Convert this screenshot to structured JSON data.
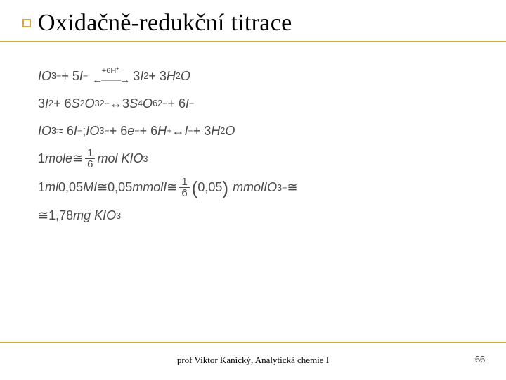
{
  "slide": {
    "title": "Oxidačně-redukční titrace",
    "accent_color": "#cfa93a",
    "title_fontsize": 34,
    "body_color": "#4a4a4a",
    "body_fontsize": 18,
    "equations": {
      "eq1": {
        "lhs_a": "IO",
        "lhs_a_sub": "3",
        "lhs_a_sup": "−",
        "plus1": " + 5",
        "lhs_b": "I",
        "lhs_b_sup": "−",
        "arrow_top": "+6H",
        "arrow_top_sup": "+",
        "rhs_a": "3",
        "rhs_a_sym": "I",
        "rhs_a_sub": "2",
        "plus2": " + 3",
        "rhs_b": "H",
        "rhs_b_sub": "2",
        "rhs_b_tail": "O"
      },
      "eq2": {
        "a": "3",
        "a_sym": "I",
        "a_sub": "2",
        "plus1": " + 6",
        "b": "S",
        "b_sub": "2",
        "b2": "O",
        "b2_sub": "3",
        "b_sup": "2−",
        "arr": " ↔ ",
        "c": "3",
        "c_sym": "S",
        "c_sub": "4",
        "c2": "O",
        "c2_sub": "6",
        "c_sup": "2−",
        "plus2": " + 6",
        "d": "I",
        "d_sup": "−"
      },
      "eq3": {
        "a": "IO",
        "a_sub": "3",
        "approx": " ≈ 6",
        "b": "I",
        "b_sup": "−",
        "sep": " ; ",
        "c": "IO",
        "c_sub": "3",
        "c_sup": "−",
        "plus1": " + 6",
        "e": "e",
        "e_sup": "−",
        "plus2": " + 6",
        "h": "H",
        "h_sup": "+",
        "arr": " ↔ ",
        "d": "I",
        "d_sup": "−",
        "plus3": " + 3",
        "w": "H",
        "w_sub": "2",
        "w_tail": "O"
      },
      "eq4": {
        "lhs": "1",
        "lhs_unit": "mol ",
        "lhs_sym": "e",
        "approx": " ≅ ",
        "frac_num": "1",
        "frac_den": "6",
        "rhs_unit": " mol KIO",
        "rhs_sub": "3"
      },
      "eq5": {
        "a_num": "1",
        "a_unit": "ml ",
        "a_conc": "0,05",
        "a_M": "M ",
        "a_sym": "I",
        "approx1": " ≅ ",
        "b_conc": "0,05",
        "b_unit": "mmol ",
        "b_sym": "I",
        "approx2": " ≅ ",
        "frac_num": "1",
        "frac_den": "6",
        "paren_val": "0,05",
        "c_unit": "mmol ",
        "c_sym": "IO",
        "c_sub": "3",
        "c_sup": "−",
        "approx3": " ≅"
      },
      "eq6": {
        "approx": "≅ ",
        "val": "1,78 ",
        "unit": "mg KIO",
        "sub": "3"
      }
    },
    "footer": "prof Viktor Kanický, Analytická chemie I",
    "page": "66"
  }
}
